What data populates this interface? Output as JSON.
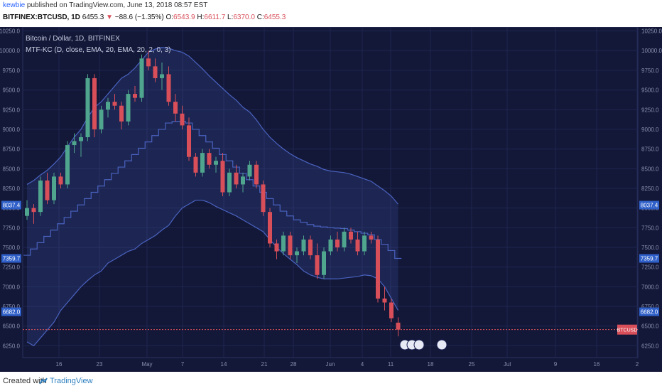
{
  "publish_line": {
    "user": "kewbie",
    "text": " published on TradingView.com, June 13, 2018 08:57 EST"
  },
  "symbol_line": {
    "symbol": "BITFINEX:BTCUSD, 1D",
    "price": "6455.3",
    "change": "−88.6 (−1.35%)",
    "o_label": "O:",
    "o": "6543.9",
    "h_label": "H:",
    "h": "6611.7",
    "l_label": "L:",
    "l": "6370.0",
    "c_label": "C:",
    "c": "6455.3"
  },
  "legend": {
    "title": "Bitcoin / Dollar, 1D, BITFINEX",
    "indicator": "MTF-KC (D, close, EMA, 20, EMA, 20, 2, 0, 3)"
  },
  "footer": {
    "created": "Created with",
    "brand": "TradingView"
  },
  "colors": {
    "background": "#131838",
    "up": "#4fa58d",
    "down": "#d84f5a",
    "band": "#3a4f9e",
    "price_line": "#d84f5a"
  },
  "chart_data": {
    "type": "candlestick",
    "ylim": [
      6100,
      10300
    ],
    "y_ticks": [
      6250,
      6500,
      6750,
      7000,
      7250,
      7500,
      7750,
      8000,
      8250,
      8500,
      8750,
      9000,
      9250,
      9500,
      9750,
      10000,
      10250
    ],
    "x_ticks": [
      "16",
      "23",
      "May",
      "7",
      "14",
      "21",
      "28",
      "Jun",
      "4",
      "11",
      "18",
      "25",
      "Jul",
      "9",
      "16",
      "2"
    ],
    "price_tags": [
      {
        "value": "8037.4",
        "y": 8037.4
      },
      {
        "value": "7359.7",
        "y": 7359.7
      },
      {
        "value": "6682.0",
        "y": 6682.0
      }
    ],
    "last_price": 6455.3,
    "last_label": "BTCUSD",
    "candles": [
      [
        7900,
        8100,
        7850,
        8000
      ],
      [
        8000,
        8050,
        7800,
        7950
      ],
      [
        7950,
        8400,
        7900,
        8350
      ],
      [
        8350,
        8450,
        8050,
        8100
      ],
      [
        8100,
        8450,
        8050,
        8400
      ],
      [
        8400,
        8450,
        8250,
        8300
      ],
      [
        8300,
        8850,
        8250,
        8800
      ],
      [
        8800,
        8950,
        8700,
        8850
      ],
      [
        8850,
        8950,
        8650,
        8900
      ],
      [
        8900,
        9700,
        8850,
        9650
      ],
      [
        9650,
        9700,
        8900,
        9000
      ],
      [
        9000,
        9300,
        8950,
        9250
      ],
      [
        9250,
        9400,
        9150,
        9350
      ],
      [
        9350,
        9450,
        9250,
        9300
      ],
      [
        9300,
        9350,
        9000,
        9100
      ],
      [
        9100,
        9500,
        9050,
        9450
      ],
      [
        9450,
        9550,
        9350,
        9400
      ],
      [
        9400,
        9950,
        9350,
        9900
      ],
      [
        9900,
        10000,
        9750,
        9800
      ],
      [
        9800,
        9900,
        9600,
        9650
      ],
      [
        9650,
        9850,
        9500,
        9700
      ],
      [
        9700,
        9800,
        9300,
        9350
      ],
      [
        9350,
        9450,
        9100,
        9200
      ],
      [
        9200,
        9300,
        9000,
        9050
      ],
      [
        9050,
        9150,
        8600,
        8650
      ],
      [
        8650,
        8700,
        8400,
        8450
      ],
      [
        8450,
        8750,
        8400,
        8700
      ],
      [
        8700,
        8750,
        8500,
        8550
      ],
      [
        8550,
        8650,
        8450,
        8600
      ],
      [
        8600,
        8700,
        8150,
        8200
      ],
      [
        8200,
        8500,
        8150,
        8450
      ],
      [
        8450,
        8550,
        8250,
        8300
      ],
      [
        8300,
        8450,
        8200,
        8400
      ],
      [
        8400,
        8600,
        8350,
        8550
      ],
      [
        8550,
        8600,
        8250,
        8300
      ],
      [
        8300,
        8350,
        7900,
        7950
      ],
      [
        7950,
        8000,
        7500,
        7550
      ],
      [
        7550,
        7600,
        7350,
        7450
      ],
      [
        7450,
        7700,
        7400,
        7650
      ],
      [
        7650,
        7700,
        7350,
        7400
      ],
      [
        7400,
        7500,
        7300,
        7450
      ],
      [
        7450,
        7650,
        7400,
        7600
      ],
      [
        7600,
        7650,
        7350,
        7400
      ],
      [
        7400,
        7550,
        7100,
        7150
      ],
      [
        7150,
        7500,
        7100,
        7450
      ],
      [
        7450,
        7650,
        7400,
        7600
      ],
      [
        7600,
        7700,
        7450,
        7500
      ],
      [
        7500,
        7750,
        7450,
        7700
      ],
      [
        7700,
        7750,
        7550,
        7600
      ],
      [
        7600,
        7700,
        7400,
        7450
      ],
      [
        7450,
        7700,
        7400,
        7650
      ],
      [
        7650,
        7700,
        7550,
        7600
      ],
      [
        7600,
        7650,
        6800,
        6850
      ],
      [
        6850,
        7000,
        6700,
        6800
      ],
      [
        6800,
        6850,
        6550,
        6600
      ],
      [
        6543.9,
        6611.7,
        6370,
        6455.3
      ]
    ],
    "keltner_upper": [
      8300,
      8350,
      8420,
      8480,
      8560,
      8650,
      8780,
      8900,
      9000,
      9150,
      9280,
      9350,
      9450,
      9550,
      9650,
      9700,
      9780,
      9880,
      9980,
      10020,
      10040,
      10030,
      10000,
      9980,
      9930,
      9850,
      9770,
      9680,
      9600,
      9520,
      9440,
      9370,
      9280,
      9220,
      9120,
      9000,
      8900,
      8820,
      8750,
      8690,
      8640,
      8600,
      8560,
      8530,
      8490,
      8470,
      8460,
      8450,
      8430,
      8400,
      8370,
      8340,
      8280,
      8220,
      8150,
      8050
    ],
    "keltner_mid": [
      7400,
      7480,
      7560,
      7640,
      7720,
      7800,
      7880,
      7960,
      8040,
      8120,
      8200,
      8280,
      8360,
      8440,
      8520,
      8600,
      8680,
      8760,
      8840,
      8920,
      9000,
      9080,
      9100,
      9100,
      9080,
      9000,
      8920,
      8840,
      8760,
      8680,
      8600,
      8520,
      8440,
      8360,
      8280,
      8200,
      8120,
      8040,
      7960,
      7900,
      7850,
      7820,
      7790,
      7770,
      7760,
      7750,
      7745,
      7740,
      7720,
      7700,
      7680,
      7660,
      7600,
      7540,
      7460,
      7360
    ],
    "keltner_lower": [
      6300,
      6250,
      6350,
      6450,
      6550,
      6700,
      6800,
      6900,
      7000,
      7080,
      7150,
      7200,
      7300,
      7350,
      7400,
      7450,
      7480,
      7550,
      7600,
      7650,
      7720,
      7780,
      7900,
      8000,
      8050,
      8100,
      8100,
      8070,
      8020,
      7980,
      7940,
      7900,
      7850,
      7800,
      7750,
      7700,
      7600,
      7500,
      7420,
      7350,
      7280,
      7200,
      7150,
      7120,
      7100,
      7100,
      7100,
      7110,
      7120,
      7130,
      7150,
      7140,
      7100,
      7000,
      6850,
      6700
    ]
  }
}
